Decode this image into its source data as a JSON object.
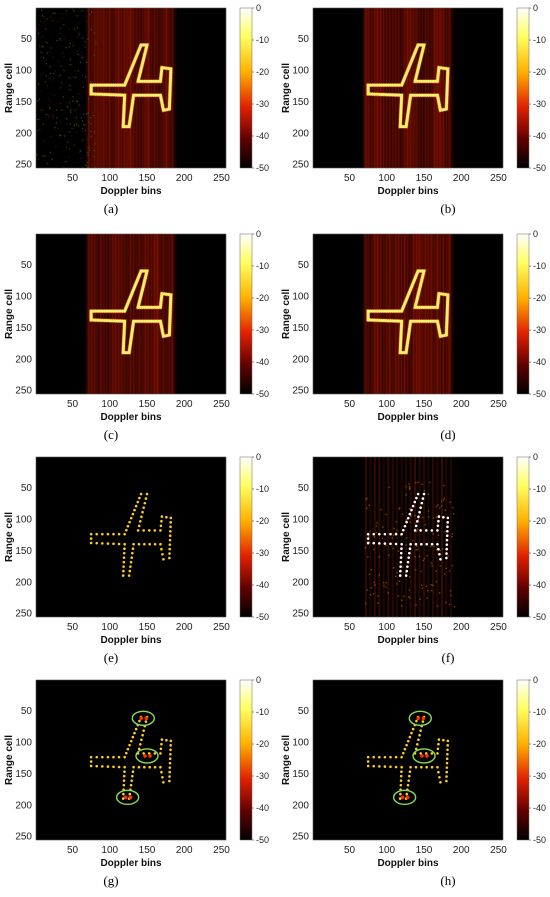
{
  "figure": {
    "panels": [
      {
        "label": "(a)",
        "variant": "blurred",
        "noise": 0.2,
        "pts": "dashed",
        "circles": false
      },
      {
        "label": "(b)",
        "variant": "blurred",
        "noise": 0.0,
        "pts": "dashed",
        "circles": false
      },
      {
        "label": "(c)",
        "variant": "blurred",
        "noise": 0.0,
        "pts": "dashed",
        "circles": false
      },
      {
        "label": "(d)",
        "variant": "blurred",
        "noise": 0.0,
        "pts": "dashed",
        "circles": false
      },
      {
        "label": "(e)",
        "variant": "sparse",
        "noise": 0.0,
        "pts": "yellow",
        "circles": false
      },
      {
        "label": "(f)",
        "variant": "sparse-artifacts",
        "noise": 0.6,
        "pts": "white",
        "circles": false
      },
      {
        "label": "(g)",
        "variant": "sparse",
        "noise": 0.0,
        "pts": "yellow",
        "circles": true
      },
      {
        "label": "(h)",
        "variant": "sparse",
        "noise": 0.0,
        "pts": "yellow",
        "circles": true
      }
    ]
  },
  "chart_data": {
    "type": "heatmap",
    "xlabel": "Doppler bins",
    "ylabel": "Range cell",
    "xticks": [
      50,
      100,
      150,
      200,
      250
    ],
    "yticks": [
      50,
      100,
      150,
      200,
      250
    ],
    "xlim": [
      1,
      256
    ],
    "ylim": [
      1,
      256
    ],
    "colorbar": {
      "ticks": [
        0,
        -10,
        -20,
        -30,
        -40,
        -50
      ],
      "range": [
        -50,
        0
      ]
    },
    "target_outline": [
      [
        75,
        124
      ],
      [
        120,
        124
      ],
      [
        142,
        60
      ],
      [
        150,
        60
      ],
      [
        138,
        118
      ],
      [
        168,
        118
      ],
      [
        170,
        96
      ],
      [
        182,
        98
      ],
      [
        180,
        162
      ],
      [
        172,
        164
      ],
      [
        168,
        140
      ],
      [
        132,
        140
      ],
      [
        126,
        190
      ],
      [
        118,
        190
      ],
      [
        120,
        140
      ],
      [
        75,
        138
      ]
    ],
    "highlighted_regions": [
      [
        145,
        62
      ],
      [
        150,
        122
      ],
      [
        124,
        188
      ]
    ]
  }
}
